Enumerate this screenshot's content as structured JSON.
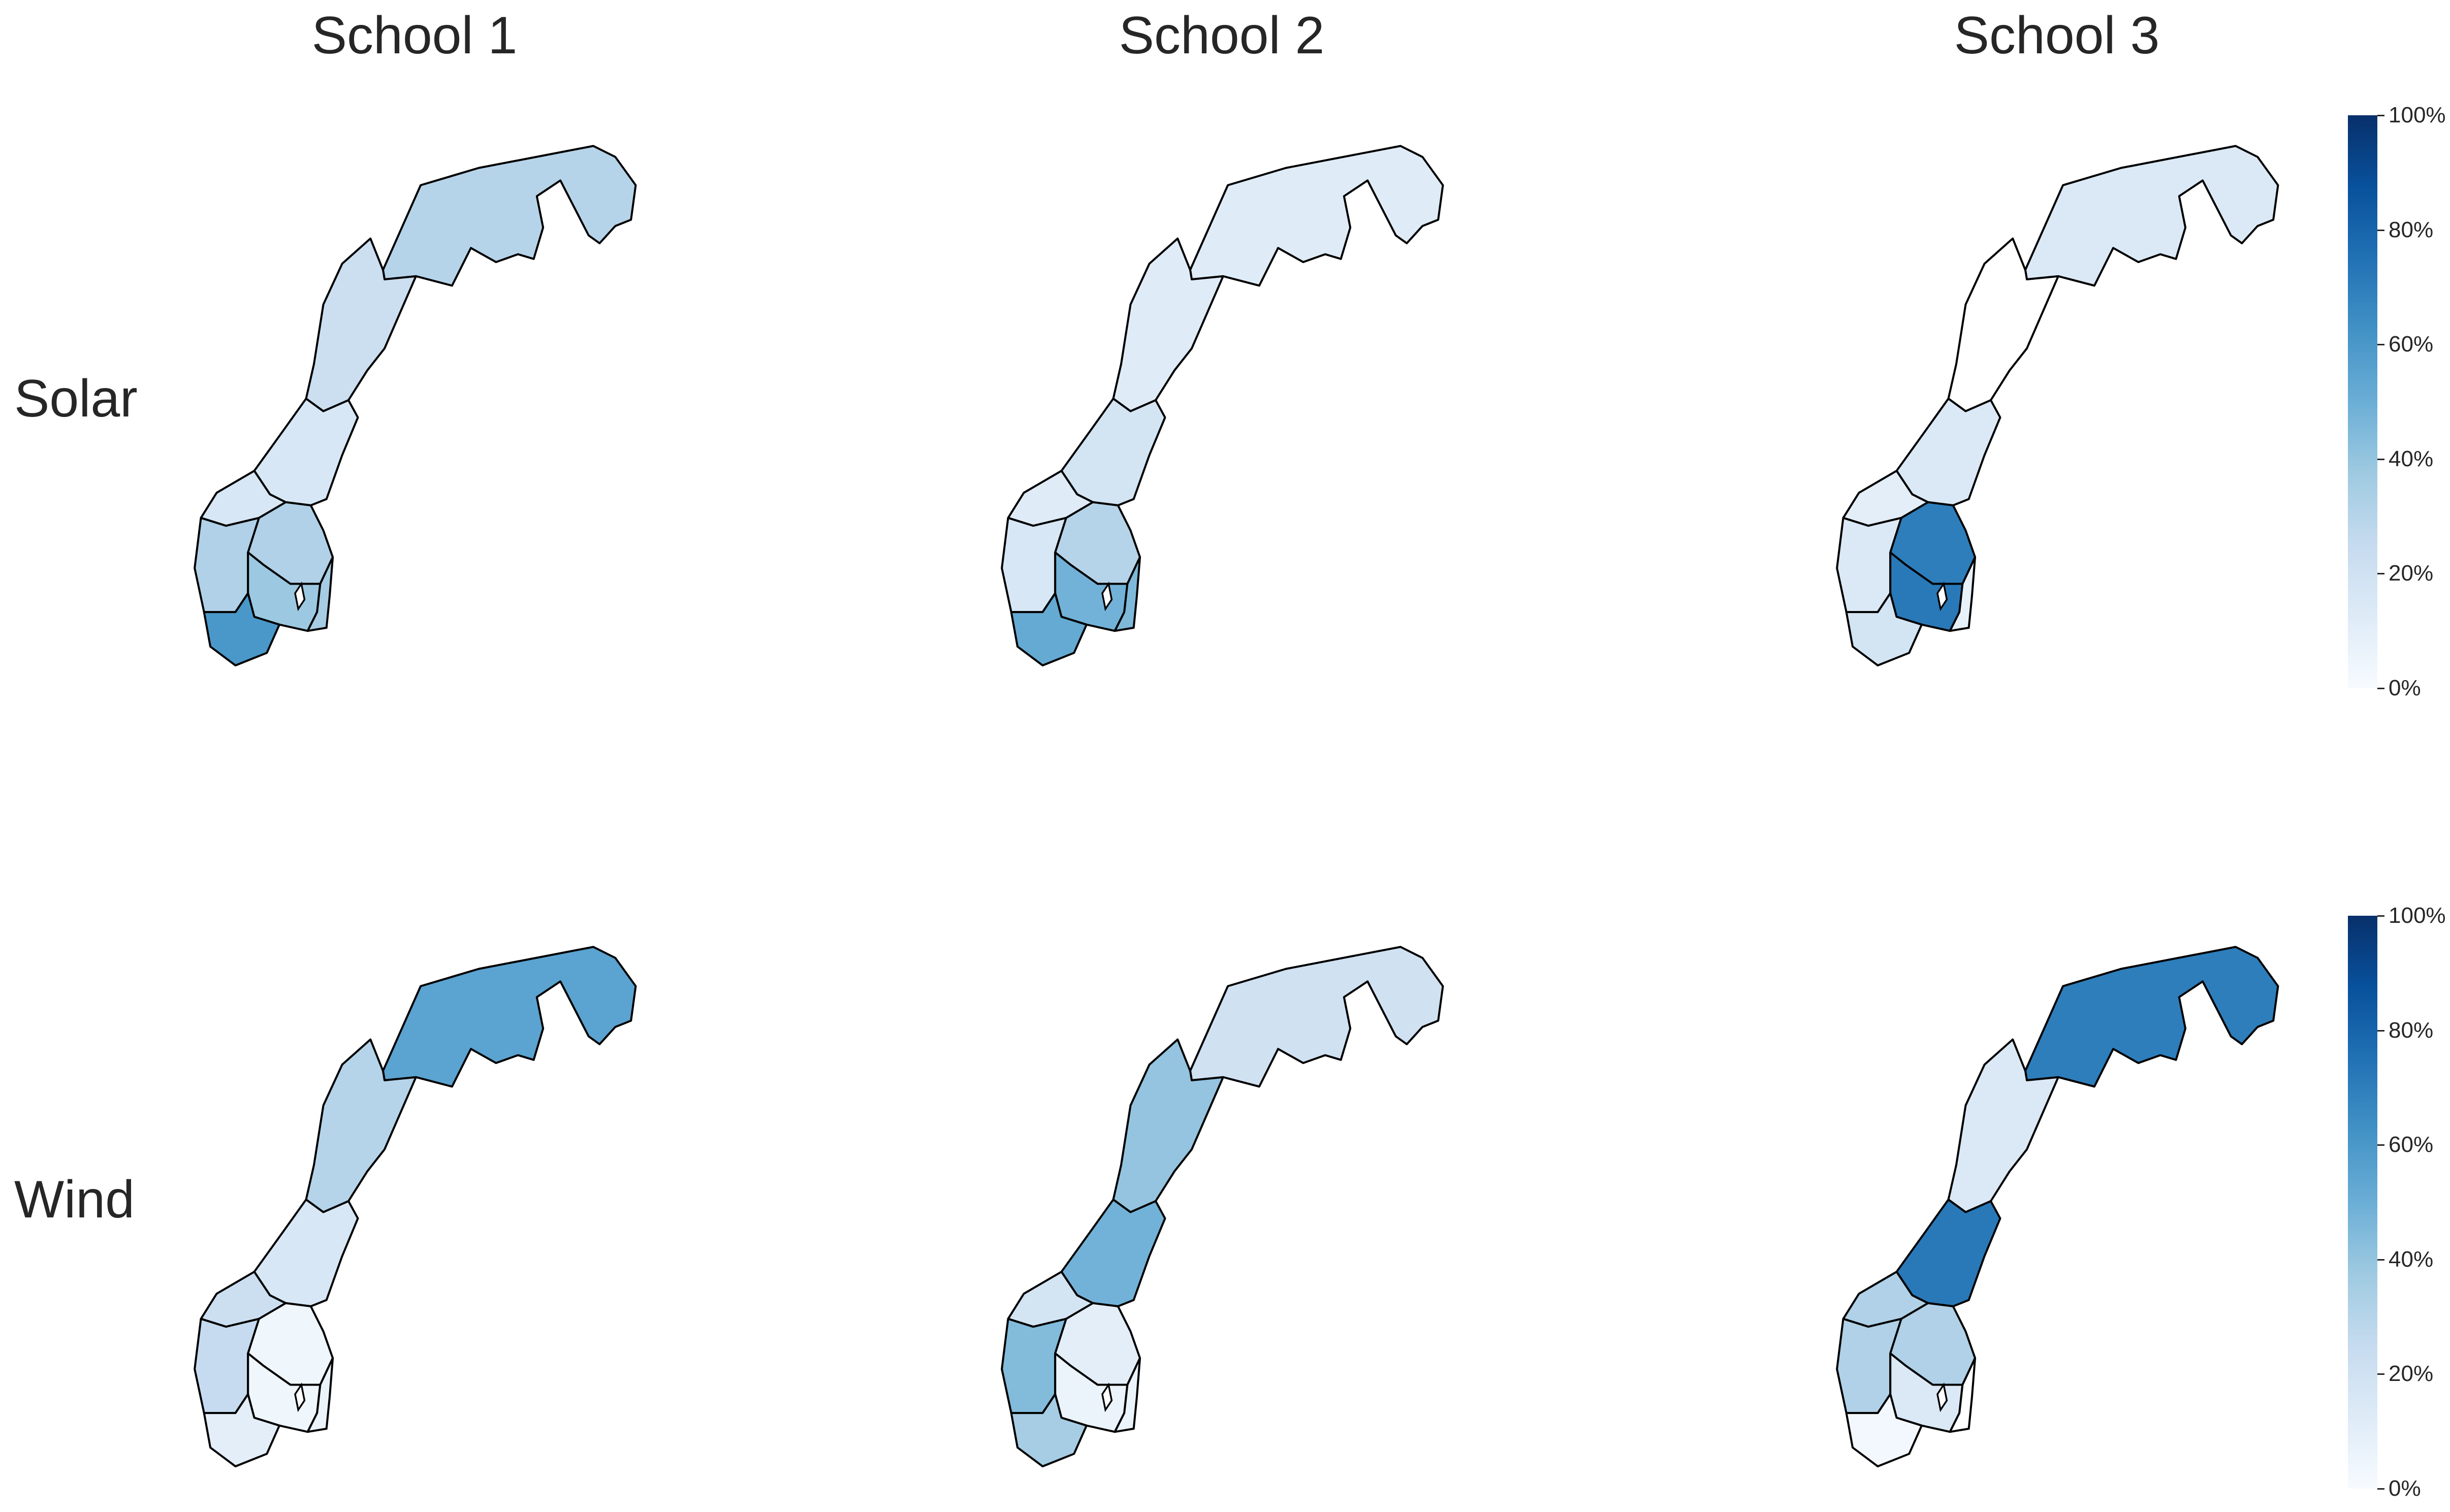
{
  "columns": [
    "School 1",
    "School 2",
    "School 3"
  ],
  "rows": [
    "Solar",
    "Wind"
  ],
  "colorbar": {
    "colormap": "Blues",
    "range": [
      0,
      100
    ],
    "ticks": [
      "0%",
      "20%",
      "40%",
      "60%",
      "80%",
      "100%"
    ]
  },
  "map": {
    "region": "Norway",
    "regions": [
      "North",
      "Middle North",
      "Middle",
      "West",
      "Southwest",
      "Inland",
      "South-East",
      "East",
      "South"
    ]
  },
  "panels": [
    {
      "school": "School 1",
      "technology": "Solar",
      "values": {
        "North": 30,
        "Middle North": 22,
        "Middle": 16,
        "West": 16,
        "Southwest": 32,
        "Inland": 32,
        "South-East": 38,
        "East": 35,
        "South": 60
      }
    },
    {
      "school": "School 2",
      "technology": "Solar",
      "values": {
        "North": 12,
        "Middle North": 12,
        "Middle": 18,
        "West": 12,
        "Southwest": 16,
        "Inland": 30,
        "South-East": 48,
        "East": 45,
        "South": 52
      }
    },
    {
      "school": "School 3",
      "technology": "Solar",
      "values": {
        "North": 14,
        "Middle North": 0,
        "Middle": 14,
        "West": 10,
        "Southwest": 14,
        "Inland": 70,
        "South-East": 72,
        "East": 8,
        "South": 18
      }
    },
    {
      "school": "School 1",
      "technology": "Wind",
      "values": {
        "North": 55,
        "Middle North": 30,
        "Middle": 16,
        "West": 22,
        "Southwest": 25,
        "Inland": 4,
        "South-East": 4,
        "East": 6,
        "South": 10
      }
    },
    {
      "school": "School 2",
      "technology": "Wind",
      "values": {
        "North": 20,
        "Middle North": 40,
        "Middle": 48,
        "West": 18,
        "Southwest": 44,
        "Inland": 10,
        "South-East": 6,
        "East": 6,
        "South": 35
      }
    },
    {
      "school": "School 3",
      "technology": "Wind",
      "values": {
        "North": 70,
        "Middle North": 14,
        "Middle": 72,
        "West": 32,
        "Southwest": 32,
        "Inland": 32,
        "South-East": 14,
        "East": 0,
        "South": 2
      }
    }
  ]
}
